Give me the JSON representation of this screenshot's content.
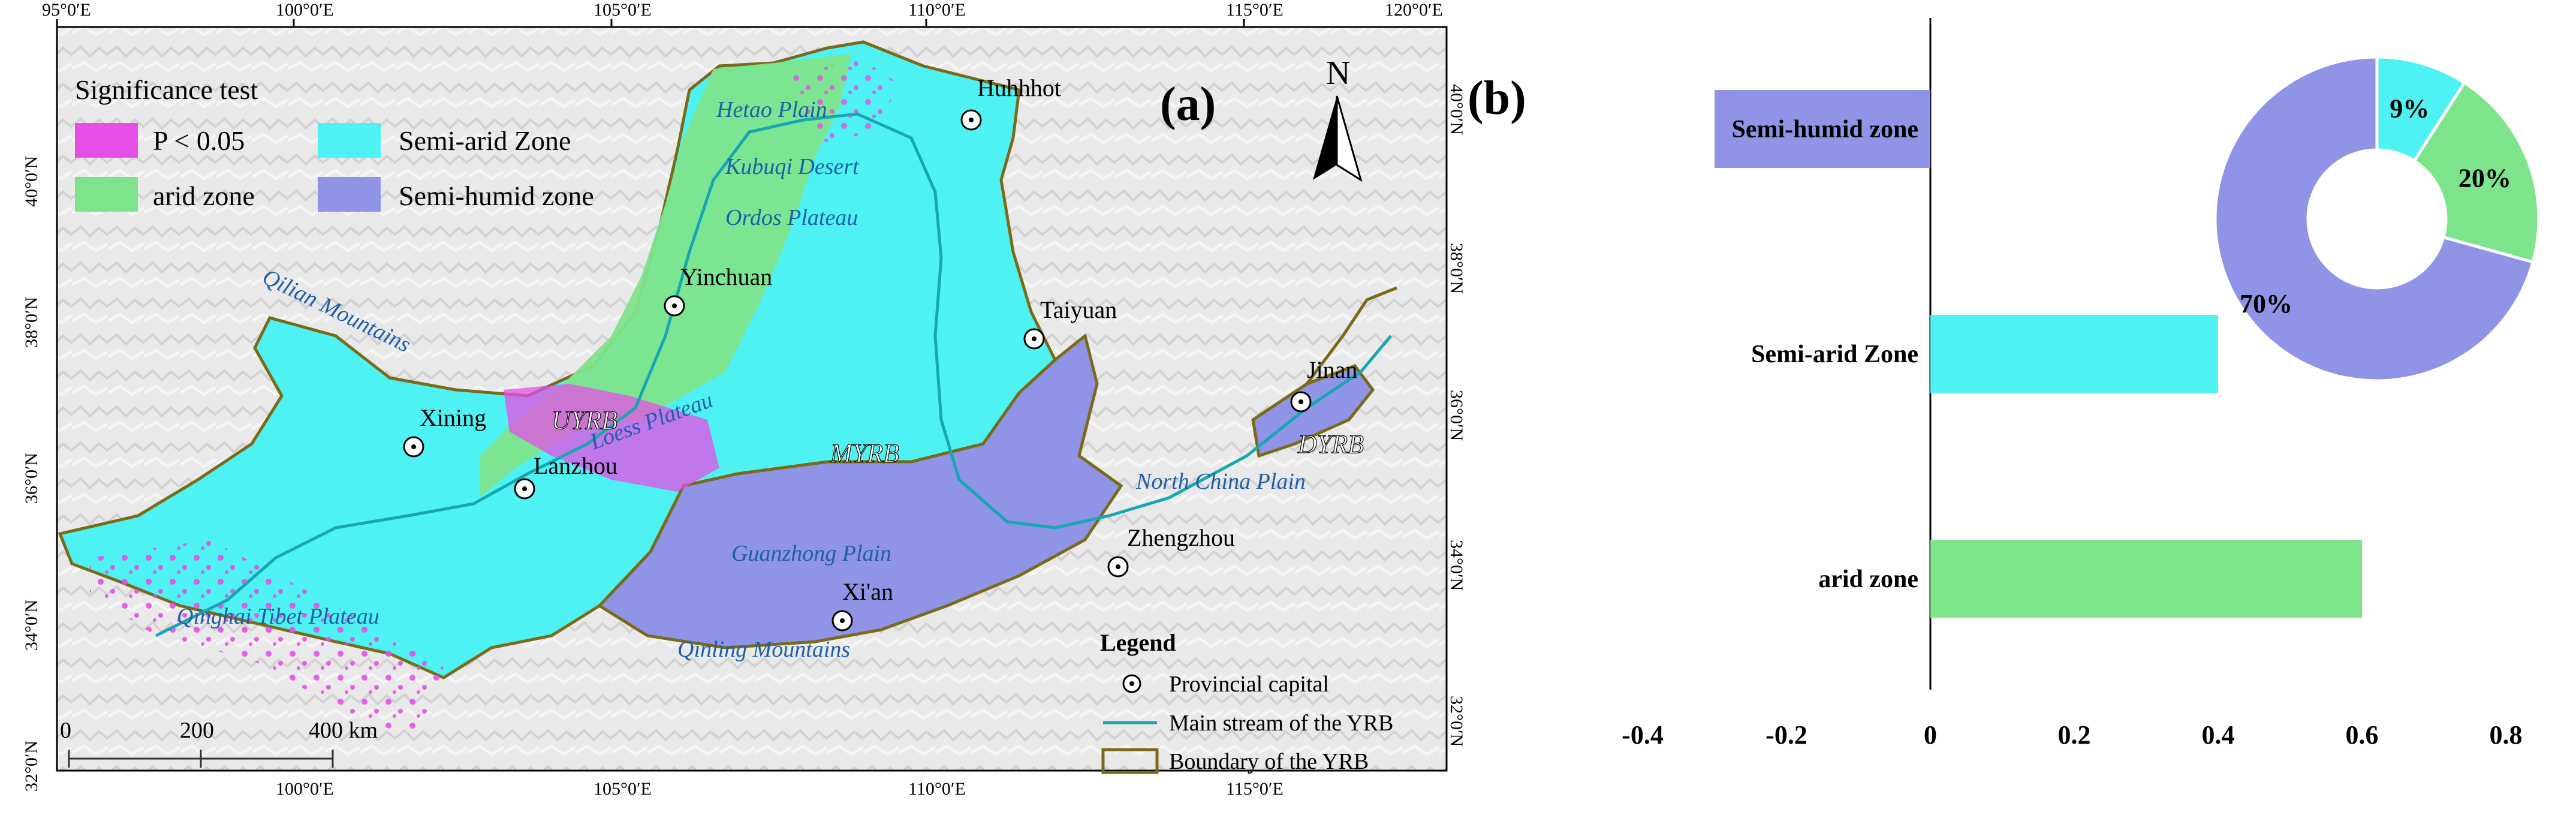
{
  "panel_a": {
    "label": "(a)",
    "lon_ticks": [
      "95°0′E",
      "100°0′E",
      "105°0′E",
      "110°0′E",
      "115°0′E",
      "120°0′E"
    ],
    "lat_ticks_left": [
      "40°0′N",
      "38°0′N",
      "36°0′N",
      "34°0′N",
      "32°0′N"
    ],
    "lat_ticks_right": [
      "40°0′N",
      "38°0′N",
      "36°0′N",
      "34°0′N",
      "32°0′N"
    ],
    "north_arrow": "N",
    "significance_legend": {
      "title": "Significance test",
      "items": [
        {
          "label": "P < 0.05",
          "color": "#e64ee6"
        },
        {
          "label": "Semi-arid Zone",
          "color": "#4ff2f2"
        },
        {
          "label": "arid zone",
          "color": "#7ee48c"
        },
        {
          "label": "Semi-humid zone",
          "color": "#8f94e6"
        }
      ]
    },
    "map_legend": {
      "title": "Legend",
      "items": [
        {
          "label": "Provincial capital",
          "icon": "provincial-capital-icon"
        },
        {
          "label": "Main stream of the YRB",
          "icon": "river-line-icon"
        },
        {
          "label": "Boundary of the YRB",
          "icon": "boundary-box-icon"
        }
      ]
    },
    "scale_bar": {
      "labels": [
        "0",
        "200",
        "400 km"
      ]
    },
    "cities": [
      "Huhhhot",
      "Yinchuan",
      "Taiyuan",
      "Jinan",
      "Xining",
      "Lanzhou",
      "Zhengzhou",
      "Xi'an"
    ],
    "region_labels": {
      "uyrb": "UYRB",
      "myrb": "MYRB",
      "dyrb": "DYRB",
      "hetao": "Hetao Plain",
      "kubuqi": "Kubuqi Desert",
      "ordos": "Ordos Plateau",
      "qilian": "Qilian Mountains",
      "loess": "Loess Plateau",
      "north_china": "North China Plain",
      "guanzhong": "Guanzhong Plain",
      "qinling": "Qinling Mountains",
      "qinghai": "Qinghai Tibet Plateau"
    }
  },
  "panel_b": {
    "label": "(b)",
    "chart_data": [
      {
        "type": "bar",
        "orientation": "horizontal",
        "categories": [
          "Semi-humid zone",
          "Semi-arid Zone",
          "arid zone"
        ],
        "values": [
          -0.3,
          0.4,
          0.6
        ],
        "colors": [
          "#8f94e6",
          "#4ff2f2",
          "#7ee48c"
        ],
        "xlim": [
          -0.4,
          0.8
        ],
        "xticks": [
          "-0.4",
          "-0.2",
          "0",
          "0.2",
          "0.4",
          "0.6",
          "0.8"
        ]
      },
      {
        "type": "pie",
        "donut": true,
        "categories": [
          "Semi-arid Zone",
          "arid zone",
          "Semi-humid zone"
        ],
        "values": [
          9,
          20,
          70
        ],
        "labels": [
          "9%",
          "20%",
          "70%"
        ],
        "colors": [
          "#4ff2f2",
          "#7ee48c",
          "#8f94e6"
        ]
      }
    ]
  }
}
